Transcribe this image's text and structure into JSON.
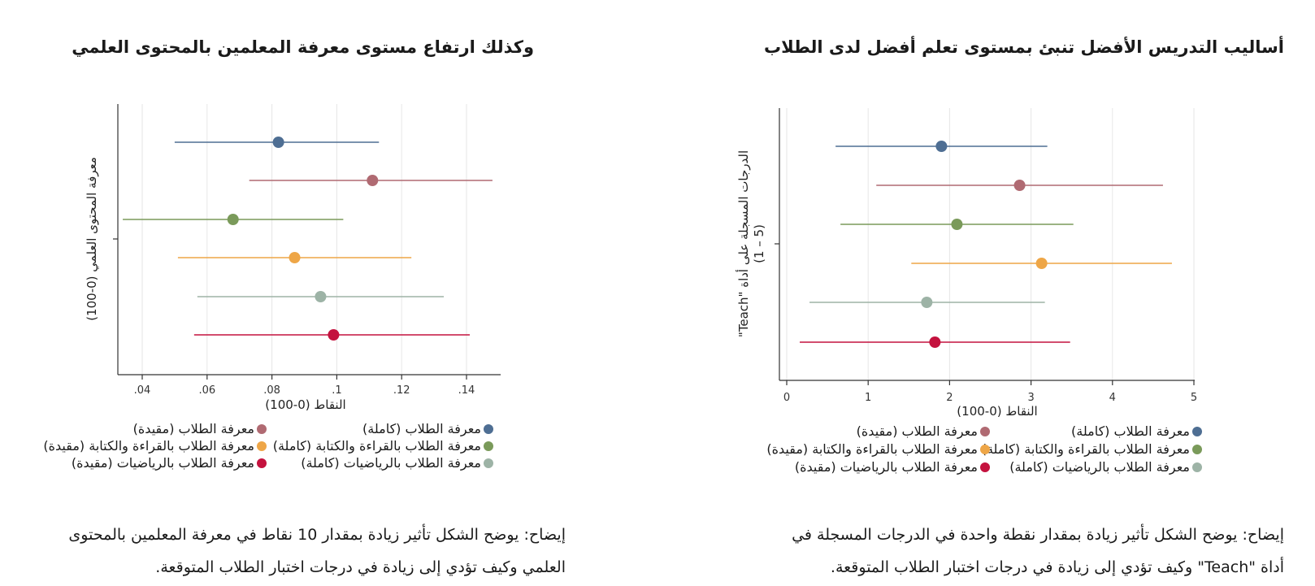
{
  "charts": {
    "right": {
      "title": "أساليب التدريس الأفضل تنبئ بمستوى تعلم أفضل لدى الطلاب",
      "caption_line1": "إيضاح: يوضح الشكل تأثير زيادة بمقدار نقطة واحدة في الدرجات المسجلة في",
      "caption_line2": "أداة \"Teach\" وكيف تؤدي إلى زيادة في درجات اختبار الطلاب المتوقعة."
    },
    "left": {
      "title": "وكذلك ارتفاع مستوى معرفة المعلمين بالمحتوى العلمي",
      "caption_line1": "إيضاح: يوضح الشكل تأثير زيادة بمقدار 10 نقاط في معرفة المعلمين بالمحتوى",
      "caption_line2": "العلمي وكيف تؤدي إلى زيادة في درجات اختبار الطلاب المتوقعة."
    }
  },
  "colors": {
    "series1": "#4e6e93",
    "series2": "#b06a72",
    "series3": "#7a9a5a",
    "series4": "#eea647",
    "series5": "#9db3a6",
    "series6": "#c4123e"
  },
  "chart_data": [
    {
      "type": "scatter",
      "title": "أساليب التدريس الأفضل تنبئ بمستوى تعلم أفضل لدى الطلاب",
      "xlabel": "النقاط (0-100)",
      "ylabel_line1": "الدرجات المسجلة على أداة \"Teach\"",
      "ylabel_line2": "(1 – 5)",
      "xlim": [
        0,
        5
      ],
      "xticks": [
        0,
        1,
        2,
        3,
        4,
        5
      ],
      "xtick_labels": [
        "0",
        "1",
        "2",
        "3",
        "4",
        "5"
      ],
      "grid": true,
      "legend_position": "bottom",
      "series": [
        {
          "name": "معرفة الطلاب (كاملة)",
          "estimate": 1.9,
          "ci_low": 0.6,
          "ci_high": 3.2
        },
        {
          "name": "معرفة الطلاب (مقيدة)",
          "estimate": 2.86,
          "ci_low": 1.1,
          "ci_high": 4.62
        },
        {
          "name": "معرفة الطلاب بالقراءة والكتابة (كاملة)",
          "estimate": 2.09,
          "ci_low": 0.66,
          "ci_high": 3.52
        },
        {
          "name": "معرفة الطلاب بالقراءة والكتابة (مقيدة)",
          "estimate": 3.13,
          "ci_low": 1.53,
          "ci_high": 4.73
        },
        {
          "name": "معرفة الطلاب بالرياضيات (كاملة)",
          "estimate": 1.72,
          "ci_low": 0.28,
          "ci_high": 3.17
        },
        {
          "name": "معرفة الطلاب بالرياضيات (مقيدة)",
          "estimate": 1.82,
          "ci_low": 0.16,
          "ci_high": 3.48
        }
      ]
    },
    {
      "type": "scatter",
      "title": "وكذلك ارتفاع مستوى معرفة المعلمين بالمحتوى العلمي",
      "xlabel": "النقاط (0-100)",
      "ylabel_line1": "معرفة المحتوى العلمي (0-100)",
      "ylabel_line2": "",
      "xlim": [
        0.032,
        0.15
      ],
      "xticks": [
        0.04,
        0.06,
        0.08,
        0.1,
        0.12,
        0.14
      ],
      "xtick_labels": [
        ".04",
        ".06",
        ".08",
        ".1",
        ".12",
        ".14"
      ],
      "grid": true,
      "legend_position": "bottom",
      "series": [
        {
          "name": "معرفة الطلاب (كاملة)",
          "estimate": 0.082,
          "ci_low": 0.05,
          "ci_high": 0.113
        },
        {
          "name": "معرفة الطلاب (مقيدة)",
          "estimate": 0.111,
          "ci_low": 0.073,
          "ci_high": 0.148
        },
        {
          "name": "معرفة الطلاب بالقراءة والكتابة (كاملة)",
          "estimate": 0.068,
          "ci_low": 0.034,
          "ci_high": 0.102
        },
        {
          "name": "معرفة الطلاب بالقراءة والكتابة (مقيدة)",
          "estimate": 0.087,
          "ci_low": 0.051,
          "ci_high": 0.123
        },
        {
          "name": "معرفة الطلاب بالرياضيات (كاملة)",
          "estimate": 0.095,
          "ci_low": 0.057,
          "ci_high": 0.133
        },
        {
          "name": "معرفة الطلاب بالرياضيات (مقيدة)",
          "estimate": 0.099,
          "ci_low": 0.056,
          "ci_high": 0.141
        }
      ]
    }
  ]
}
